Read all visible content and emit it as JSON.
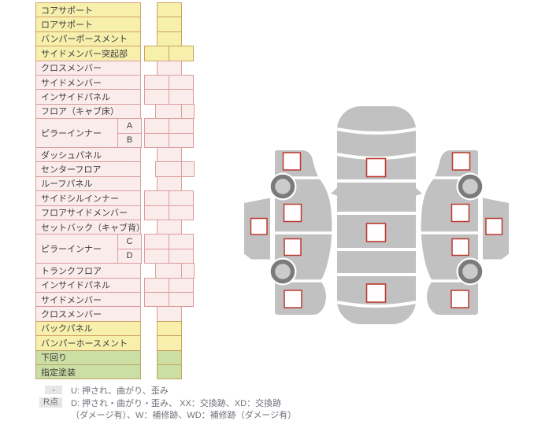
{
  "table": {
    "rows": [
      {
        "label": "コアサポート",
        "section": "yellow",
        "cells": "single"
      },
      {
        "label": "ロアサポート",
        "section": "yellow",
        "cells": "single"
      },
      {
        "label": "バンパーポースメント",
        "section": "yellow",
        "cells": "single"
      },
      {
        "label": "サイドメンバー突起部",
        "section": "yellow",
        "cells": "wide2"
      },
      {
        "label": "クロスメンバー",
        "section": "pink",
        "cells": "single"
      },
      {
        "label": "サイドメンバー",
        "section": "pink",
        "cells": "wide2"
      },
      {
        "label": "インサイドパネル",
        "section": "pink",
        "cells": "wide2"
      },
      {
        "label": "フロア（キャブ床）",
        "section": "pink",
        "cells": "offset2"
      },
      {
        "label": "ピラーインナー",
        "section": "pink",
        "cells": "wide2",
        "subs": [
          "A",
          "B"
        ]
      },
      {
        "label": "ダッシュパネル",
        "section": "pink",
        "cells": "single"
      },
      {
        "label": "センターフロア",
        "section": "pink",
        "cells": "offset2"
      },
      {
        "label": "ルーフパネル",
        "section": "pink",
        "cells": "single"
      },
      {
        "label": "サイドシルインナー",
        "section": "pink",
        "cells": "wide2"
      },
      {
        "label": "フロアサイドメンバー",
        "section": "pink",
        "cells": "wide2"
      },
      {
        "label": "セットバック（キャブ背）",
        "section": "pink",
        "cells": "single"
      },
      {
        "label": "ピラーインナー",
        "section": "pink",
        "cells": "wide2",
        "subs": [
          "C",
          "D"
        ]
      },
      {
        "label": "トランクフロア",
        "section": "pink",
        "cells": "offset2"
      },
      {
        "label": "インサイドパネル",
        "section": "pink",
        "cells": "wide2"
      },
      {
        "label": "サイドメンバー",
        "section": "pink",
        "cells": "wide2"
      },
      {
        "label": "クロスメンバー",
        "section": "pink",
        "cells": "single"
      },
      {
        "label": "バックパネル",
        "section": "yellow",
        "cells": "single"
      },
      {
        "label": "バンパーホースメント",
        "section": "yellow",
        "cells": "single"
      },
      {
        "label": "下回り",
        "section": "green",
        "cells": "single"
      },
      {
        "label": "指定塗装",
        "section": "green",
        "cells": "single"
      }
    ]
  },
  "legend": {
    "rows": [
      {
        "key": "-",
        "text": "U: 押され、曲がり、歪み"
      },
      {
        "key": "R点",
        "text": "D: 押され・曲がり・歪み、 XX：交換跡、XD：交換跡",
        "text2": "（ダメージ有）、W：補修跡、WD：補修跡（ダメージ有）"
      }
    ]
  },
  "diagram": {
    "description": "vehicle-damage-diagram",
    "views": [
      "left-side",
      "top",
      "right-side"
    ],
    "marker_count": 13,
    "wheel_count": 4
  },
  "colors": {
    "yellow_fill": "#F7F0AC",
    "pink_fill": "#FBECEC",
    "green_fill": "#CBDEA4",
    "tan_border": "#C9A35E",
    "pink_border": "#DC9C9C",
    "label_border_yellow": "#D2A06A",
    "label_border_green": "#BFA26B",
    "car_gray": "#C1C1C1",
    "wheel_dark": "#7B7B7B",
    "wheel_hub": "#CBCBCB",
    "marker_border": "#BB3A30",
    "marker_fill": "#FFFDFD",
    "legend_box": "#E6E6E6",
    "text": "#3C3C3C",
    "legend_text": "#6F6F7A"
  }
}
